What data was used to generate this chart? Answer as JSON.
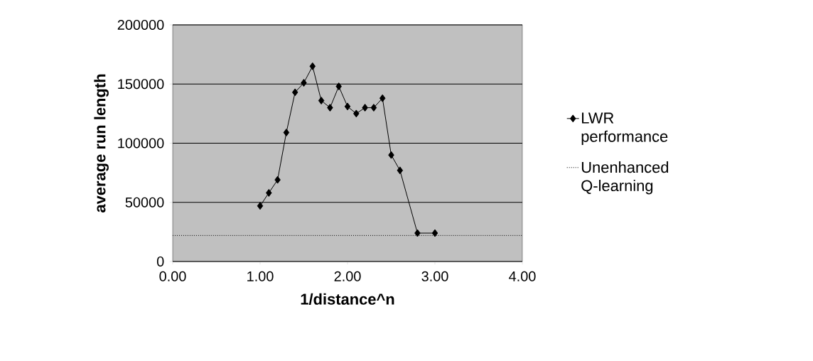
{
  "chart_data": {
    "type": "line",
    "xlabel": "1/distance^n",
    "ylabel": "average run length",
    "xlim": [
      0,
      4
    ],
    "xticks": [
      {
        "value": 0,
        "label": "0.00"
      },
      {
        "value": 1,
        "label": "1.00"
      },
      {
        "value": 2,
        "label": "2.00"
      },
      {
        "value": 3,
        "label": "3.00"
      },
      {
        "value": 4,
        "label": "4.00"
      }
    ],
    "ylim": [
      0,
      200000
    ],
    "yticks": [
      0,
      50000,
      100000,
      150000,
      200000
    ],
    "grid": "y",
    "legend": "right",
    "series": [
      {
        "name": "LWR performance",
        "color": "#000000",
        "marker": "diamond",
        "line_style": "solid",
        "x": [
          1.0,
          1.1,
          1.2,
          1.3,
          1.4,
          1.5,
          1.6,
          1.7,
          1.8,
          1.9,
          2.0,
          2.1,
          2.2,
          2.3,
          2.4,
          2.5,
          2.6,
          2.8,
          3.0
        ],
        "values": [
          47000,
          58000,
          69000,
          109000,
          143000,
          151000,
          165000,
          136000,
          130000,
          148000,
          131000,
          125000,
          130000,
          130000,
          138000,
          90000,
          77000,
          24000,
          24000
        ]
      },
      {
        "name": "Unenhanced Q-learning",
        "color": "#000000",
        "marker": "none",
        "line_style": "dotted",
        "x": [
          0,
          4
        ],
        "values": [
          22000,
          22000
        ]
      }
    ]
  }
}
